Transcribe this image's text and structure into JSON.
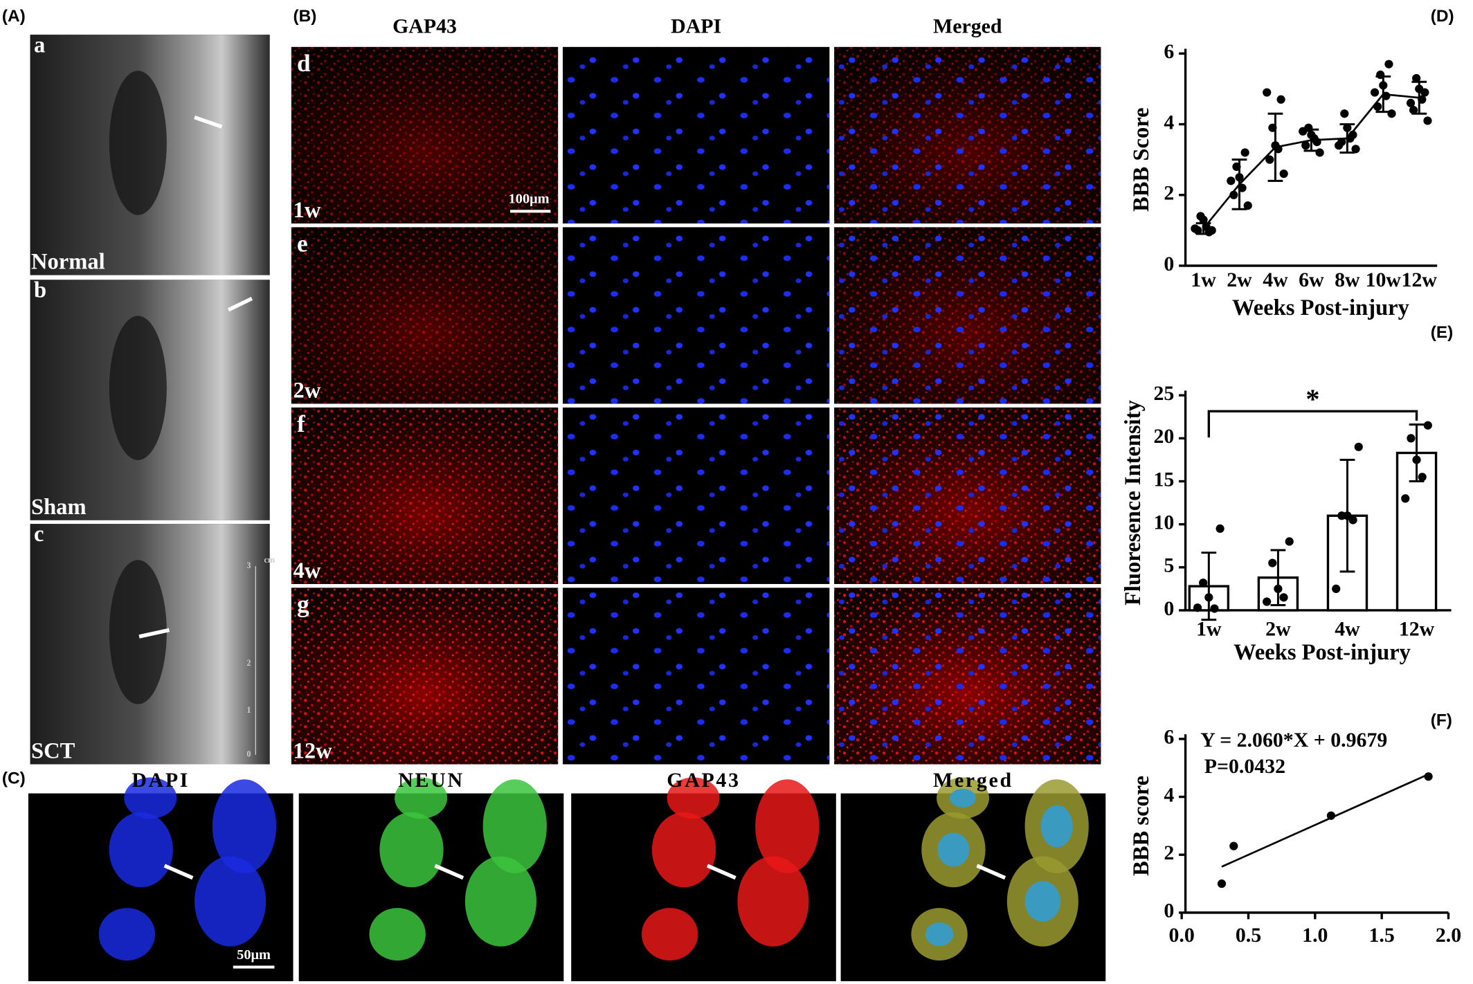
{
  "panels": {
    "A": "(A)",
    "B": "(B)",
    "C": "(C)",
    "D": "(D)",
    "E": "(E)",
    "F": "(F)"
  },
  "mri": [
    {
      "letter": "a",
      "label": "Normal"
    },
    {
      "letter": "b",
      "label": "Sham"
    },
    {
      "letter": "c",
      "label": "SCT"
    }
  ],
  "mri_scale": {
    "unit": "cm",
    "ticks": [
      "3",
      "2",
      "1",
      "0"
    ]
  },
  "b_columns": [
    "GAP43",
    "DAPI",
    "Merged"
  ],
  "b_rows": [
    {
      "letter": "d",
      "time": "1w"
    },
    {
      "letter": "e",
      "time": "2w"
    },
    {
      "letter": "f",
      "time": "4w"
    },
    {
      "letter": "g",
      "time": "12w"
    }
  ],
  "b_scale": "100μm",
  "c_columns": [
    "DAPI",
    "NEUN",
    "GAP43",
    "Merged"
  ],
  "c_scale": "50μm",
  "chart_data": [
    {
      "type": "line",
      "ylabel": "BBB Score",
      "xlabel": "Weeks Post-injury",
      "categories": [
        "1w",
        "2w",
        "4w",
        "6w",
        "8w",
        "10w",
        "12w"
      ],
      "values": [
        1.05,
        2.3,
        3.35,
        3.55,
        3.6,
        4.85,
        4.75
      ],
      "errors": [
        0.15,
        0.7,
        0.95,
        0.3,
        0.4,
        0.5,
        0.45
      ],
      "points": [
        [
          1.0,
          1.0,
          1.1,
          1.3,
          1.4,
          0.95,
          1.05
        ],
        [
          1.7,
          2.0,
          2.2,
          2.5,
          2.8,
          3.2,
          2.4
        ],
        [
          2.6,
          3.0,
          3.3,
          3.4,
          3.9,
          4.7,
          4.9
        ],
        [
          3.2,
          3.4,
          3.6,
          3.7,
          3.9,
          3.5,
          3.8
        ],
        [
          3.3,
          3.5,
          3.6,
          3.9,
          4.3,
          3.7,
          3.4
        ],
        [
          4.3,
          4.5,
          4.8,
          5.1,
          5.4,
          5.7,
          4.9
        ],
        [
          4.1,
          4.4,
          4.7,
          5.0,
          5.3,
          4.9,
          4.6
        ]
      ],
      "color": "#000000",
      "ylim": [
        0,
        6
      ],
      "yticks": [
        0,
        2,
        4,
        6
      ]
    },
    {
      "type": "bar",
      "ylabel": "Fluoresence Intensity",
      "xlabel": "Weeks Post-injury",
      "categories": [
        "1w",
        "2w",
        "4w",
        "12w"
      ],
      "values": [
        2.8,
        3.8,
        11,
        18.3
      ],
      "errors": [
        3.9,
        3.2,
        6.5,
        3.3
      ],
      "points": [
        [
          9.5,
          3.2,
          1.5,
          0.2,
          0.3
        ],
        [
          8,
          5.5,
          2.5,
          1.5,
          1
        ],
        [
          19,
          11,
          11,
          10.5,
          2.5
        ],
        [
          21.5,
          20,
          17.5,
          15.5,
          13
        ]
      ],
      "annotation": {
        "text": "*",
        "between": [
          "1w",
          "12w"
        ]
      },
      "color": "#ffffff",
      "ylim": [
        0,
        25
      ],
      "yticks": [
        0,
        5,
        10,
        15,
        20,
        25
      ]
    },
    {
      "type": "scatter",
      "ylabel": "BBB score",
      "x": [
        0.3,
        0.39,
        1.12,
        1.85
      ],
      "values": [
        1.0,
        2.3,
        3.35,
        4.7
      ],
      "fit": {
        "slope": 2.06,
        "intercept": 0.9679
      },
      "annotations": [
        "Y = 2.060*X + 0.9679",
        "P=0.0432"
      ],
      "color": "#000000",
      "xlim": [
        0,
        2
      ],
      "xticks": [
        {
          "value": 0,
          "label": "0.0"
        },
        {
          "value": 0.5,
          "label": "0.5"
        },
        {
          "value": 1,
          "label": "1.0"
        },
        {
          "value": 1.5,
          "label": "1.5"
        },
        {
          "value": 2,
          "label": "2.0"
        }
      ],
      "ylim": [
        0,
        6
      ],
      "yticks": [
        0,
        2,
        4,
        6
      ]
    }
  ]
}
